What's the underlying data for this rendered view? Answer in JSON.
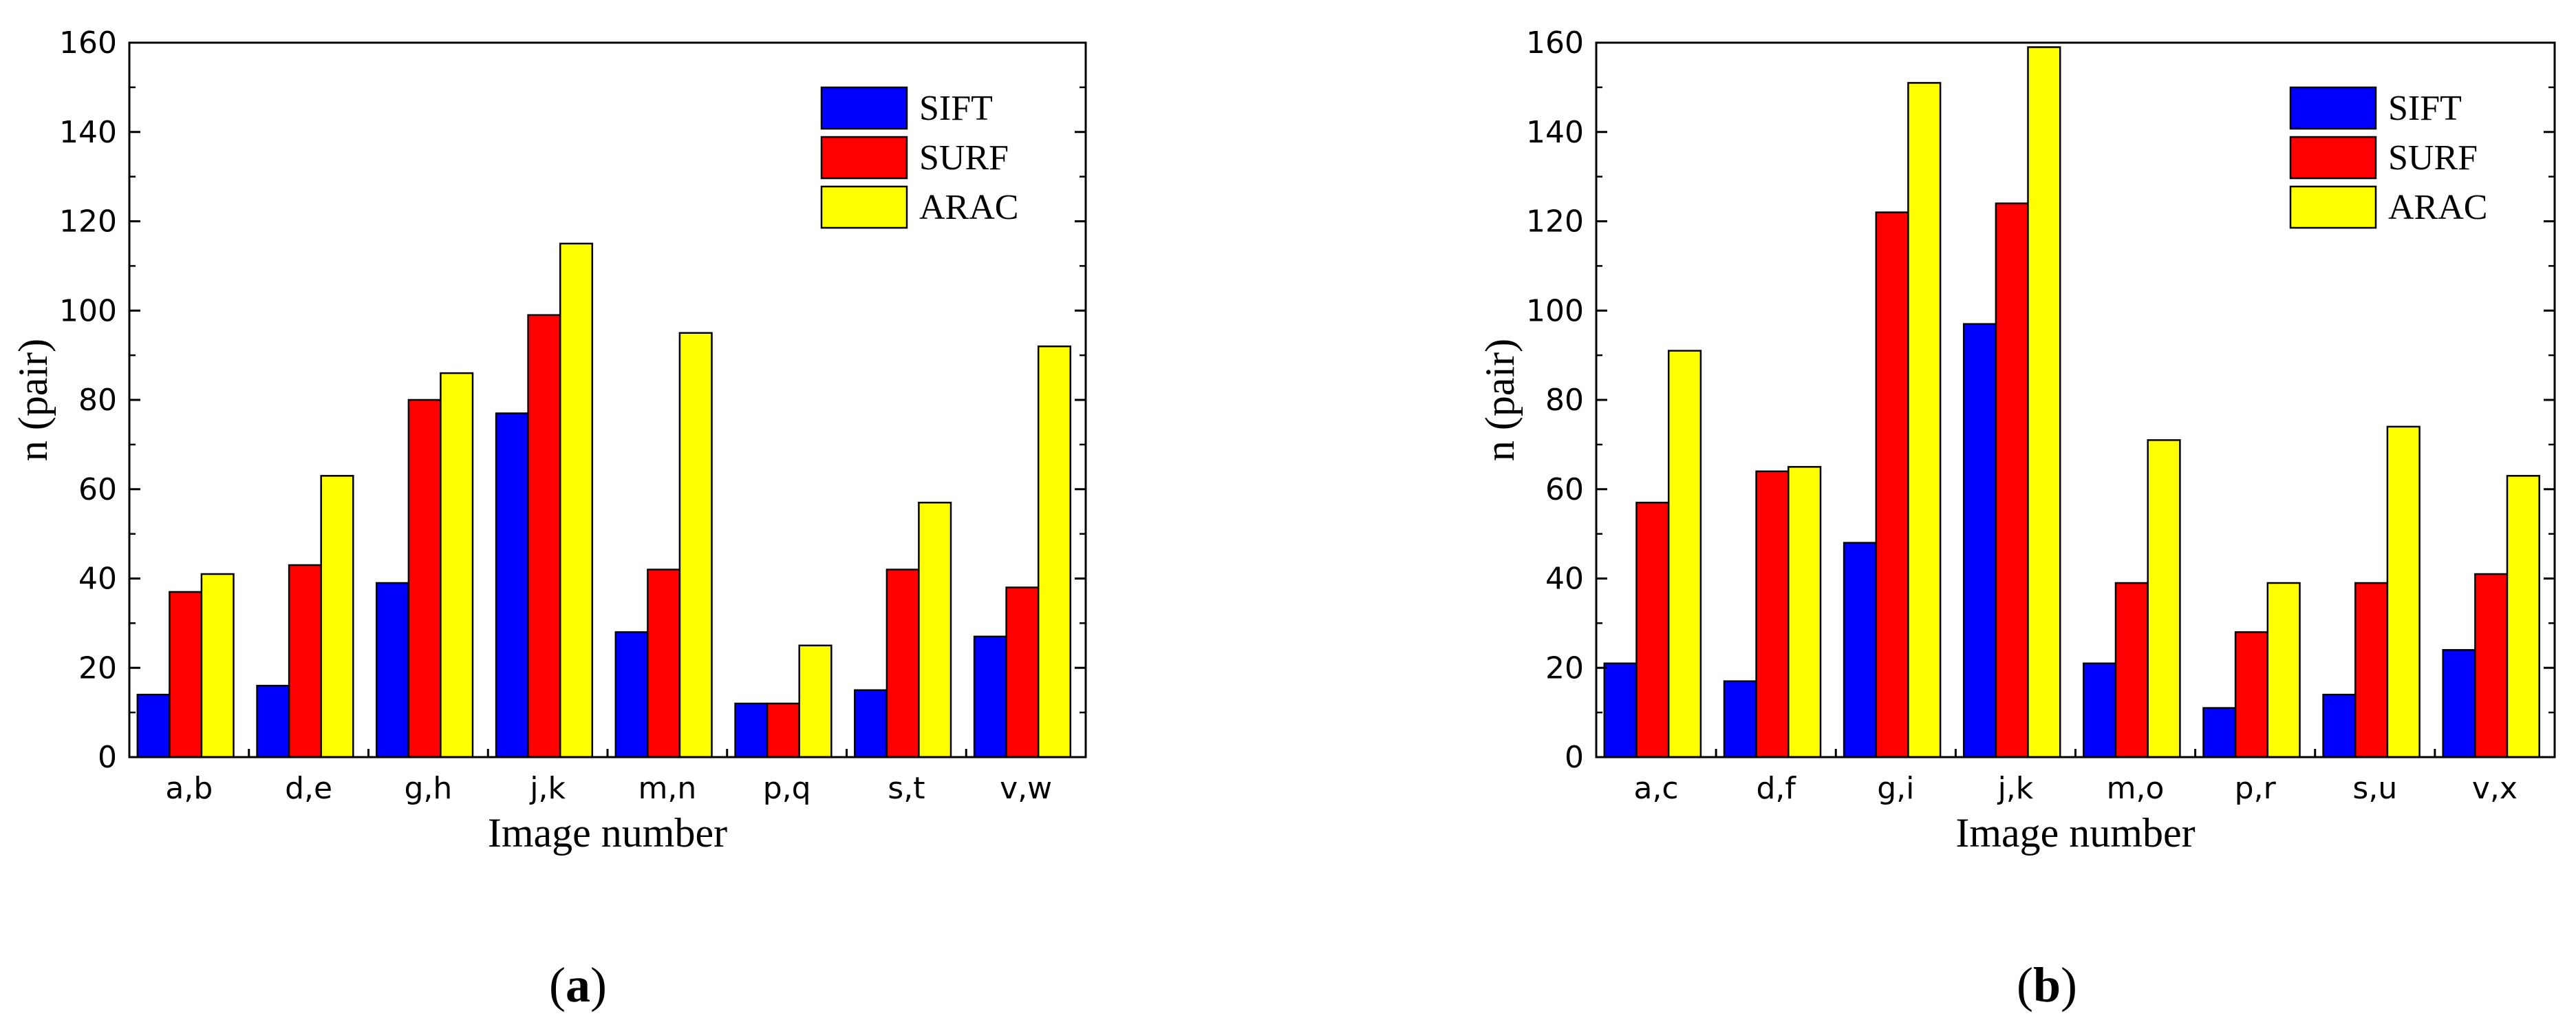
{
  "chart_data": [
    {
      "type": "bar",
      "panel_label": "a",
      "categories": [
        "a,b",
        "d,e",
        "g,h",
        "j,k",
        "m,n",
        "p,q",
        "s,t",
        "v,w"
      ],
      "series": [
        {
          "name": "SIFT",
          "color": "#0000ff",
          "values": [
            14,
            16,
            39,
            77,
            28,
            12,
            15,
            27
          ]
        },
        {
          "name": "SURF",
          "color": "#ff0000",
          "values": [
            37,
            43,
            80,
            99,
            42,
            12,
            42,
            38
          ]
        },
        {
          "name": "ARAC",
          "color": "#ffff00",
          "values": [
            41,
            63,
            86,
            115,
            95,
            25,
            57,
            92
          ]
        }
      ],
      "xlabel": "Image number",
      "ylabel": "n (pair)",
      "ylim": [
        0,
        160
      ],
      "yticks": [
        0,
        20,
        40,
        60,
        80,
        100,
        120,
        140,
        160
      ],
      "legend_position": "top-right"
    },
    {
      "type": "bar",
      "panel_label": "b",
      "categories": [
        "a,c",
        "d,f",
        "g,i",
        "j,k",
        "m,o",
        "p,r",
        "s,u",
        "v,x"
      ],
      "series": [
        {
          "name": "SIFT",
          "color": "#0000ff",
          "values": [
            21,
            17,
            48,
            97,
            21,
            11,
            14,
            24
          ]
        },
        {
          "name": "SURF",
          "color": "#ff0000",
          "values": [
            57,
            64,
            122,
            124,
            39,
            28,
            39,
            41
          ]
        },
        {
          "name": "ARAC",
          "color": "#ffff00",
          "values": [
            91,
            65,
            151,
            159,
            71,
            39,
            74,
            63
          ]
        }
      ],
      "xlabel": "Image number",
      "ylabel": "n (pair)",
      "ylim": [
        0,
        160
      ],
      "yticks": [
        0,
        20,
        40,
        60,
        80,
        100,
        120,
        140,
        160
      ],
      "legend_position": "top-right"
    }
  ]
}
